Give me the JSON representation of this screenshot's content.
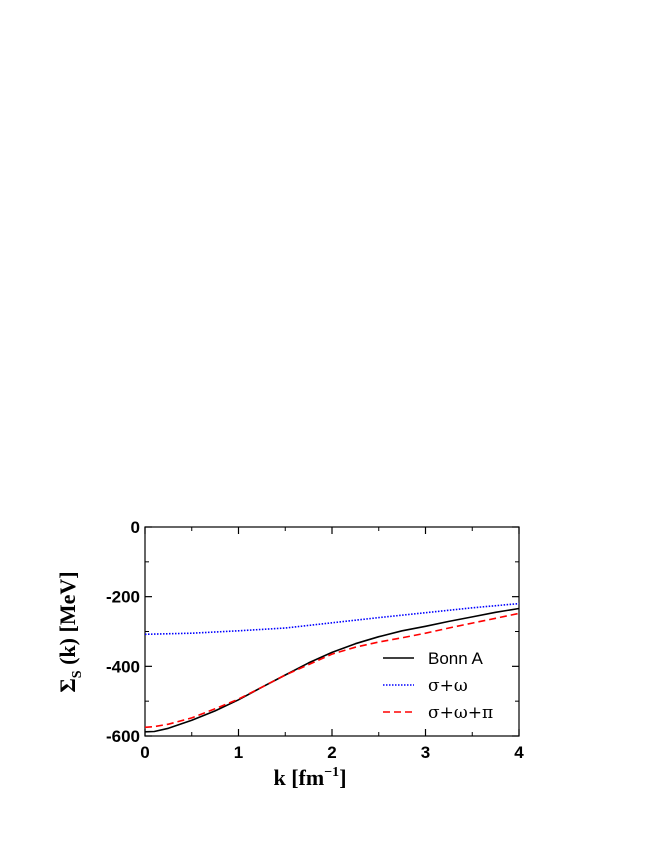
{
  "chart_data": {
    "type": "line",
    "xlabel": {
      "main": "k [fm",
      "sup": "−1",
      "close": "]"
    },
    "ylabel": {
      "main": "Σ",
      "sub": "S",
      "rest": " (k) [MeV]"
    },
    "xlim": [
      0,
      4
    ],
    "ylim": [
      -600,
      0
    ],
    "x_ticks": [
      0,
      1,
      2,
      3,
      4
    ],
    "x_tick_labels": [
      "0",
      "1",
      "2",
      "3",
      "4"
    ],
    "y_ticks": [
      0,
      -200,
      -400,
      -600
    ],
    "y_tick_labels": [
      "0",
      "-200",
      "-400",
      "-600"
    ],
    "grid": false,
    "legend_position": "lower-right",
    "series": [
      {
        "name": "Bonn A",
        "color": "#000000",
        "dash": "solid",
        "x": [
          0,
          0.1,
          0.25,
          0.5,
          0.75,
          1.0,
          1.25,
          1.5,
          1.75,
          2.0,
          2.25,
          2.5,
          2.75,
          3.0,
          3.25,
          3.5,
          3.75,
          4.0
        ],
        "y": [
          -588,
          -587,
          -578,
          -555,
          -528,
          -496,
          -460,
          -425,
          -390,
          -360,
          -335,
          -315,
          -298,
          -285,
          -271,
          -258,
          -245,
          -234
        ]
      },
      {
        "name": "σ+ω",
        "color": "#0000ff",
        "dash": "dotted",
        "x": [
          0,
          0.5,
          1.0,
          1.5,
          2.0,
          2.5,
          3.0,
          3.5,
          4.0
        ],
        "y": [
          -308,
          -305,
          -298,
          -290,
          -275,
          -260,
          -246,
          -232,
          -220
        ]
      },
      {
        "name": "σ+ω+π",
        "color": "#ff0000",
        "dash": "dashed",
        "x": [
          0,
          0.1,
          0.25,
          0.5,
          0.75,
          1.0,
          1.25,
          1.5,
          1.75,
          2.0,
          2.25,
          2.5,
          2.75,
          3.0,
          3.25,
          3.5,
          3.75,
          4.0
        ],
        "y": [
          -575,
          -573,
          -566,
          -548,
          -522,
          -494,
          -460,
          -425,
          -395,
          -365,
          -345,
          -330,
          -318,
          -305,
          -290,
          -276,
          -262,
          -248
        ]
      }
    ]
  }
}
